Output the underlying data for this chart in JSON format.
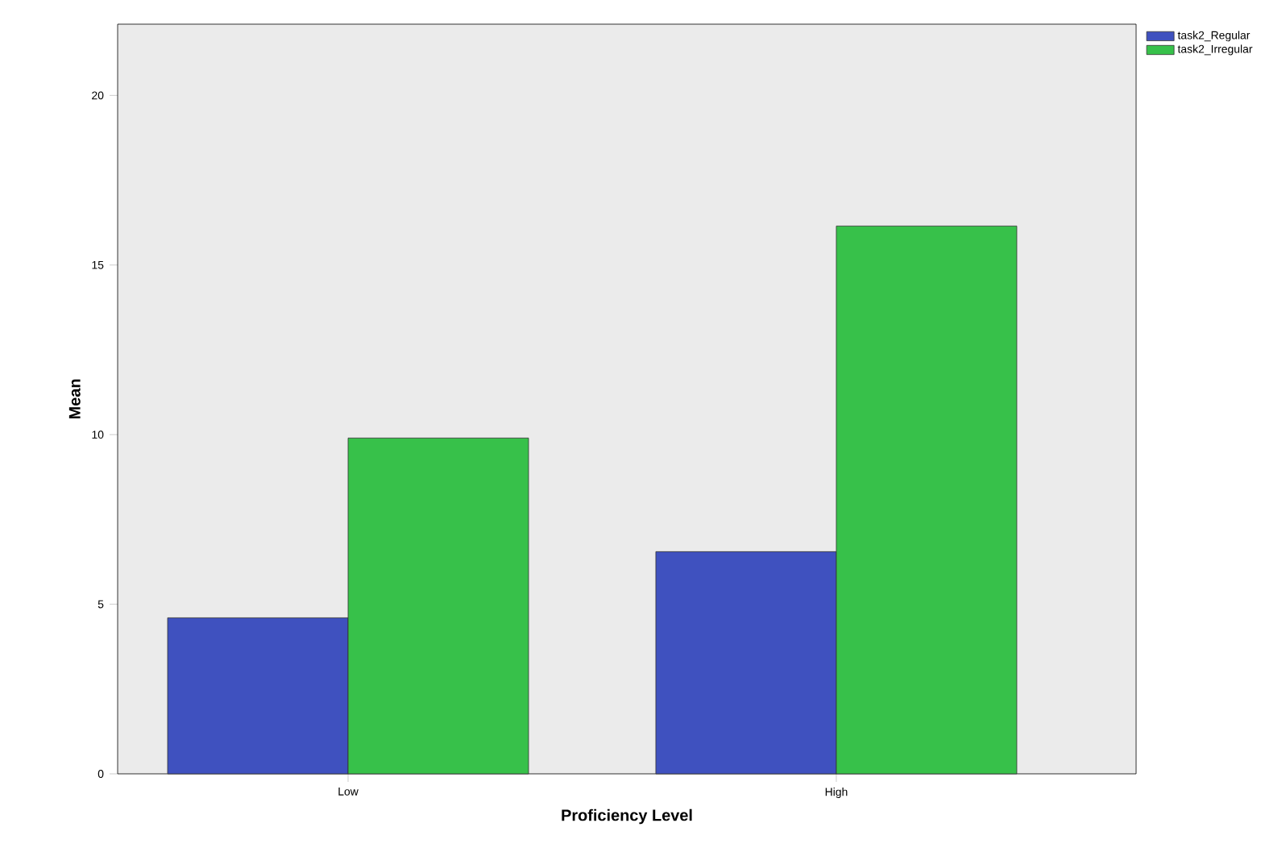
{
  "chart_data": {
    "type": "bar",
    "xlabel": "Proficiency Level",
    "ylabel": "Mean",
    "categories": [
      "Low",
      "High"
    ],
    "series": [
      {
        "name": "task2_Regular",
        "color": "#3f51bf",
        "values": [
          4.6,
          6.55
        ]
      },
      {
        "name": "task2_Irregular",
        "color": "#37c14a",
        "values": [
          9.9,
          16.15
        ]
      }
    ],
    "ylim": [
      0,
      22.1
    ],
    "yticks": [
      0,
      5,
      10,
      15,
      20
    ],
    "legend": "top right",
    "grid": false
  }
}
